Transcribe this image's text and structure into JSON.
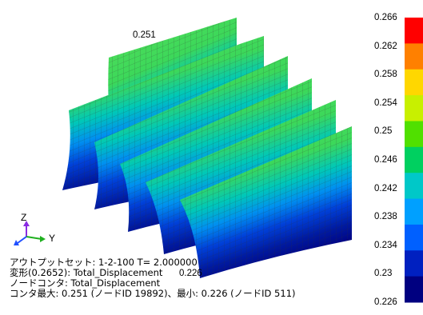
{
  "legend": {
    "values": [
      "0.266",
      "0.262",
      "0.258",
      "0.254",
      "0.25",
      "0.246",
      "0.242",
      "0.238",
      "0.234",
      "0.23",
      "0.226"
    ],
    "colors": [
      "#ff0000",
      "#ff8000",
      "#ffd700",
      "#c8f000",
      "#50e000",
      "#00d060",
      "#00c8c8",
      "#00a0ff",
      "#0060ff",
      "#0020c0",
      "#000080"
    ]
  },
  "annotations": {
    "max_label": "0.251",
    "min_label": "0.226"
  },
  "axes": {
    "z": "Z",
    "y": "Y"
  },
  "info": {
    "line1": "アウトプットセット: 1-2-100 T= 2.000000",
    "line2": "変形(0.2652): Total_Displacement",
    "line3": "ノードコンタ: Total_Displacement",
    "line4": "コンタ最大: 0.251 (ノードID 19892)、最小: 0.226 (ノードID 511)"
  }
}
